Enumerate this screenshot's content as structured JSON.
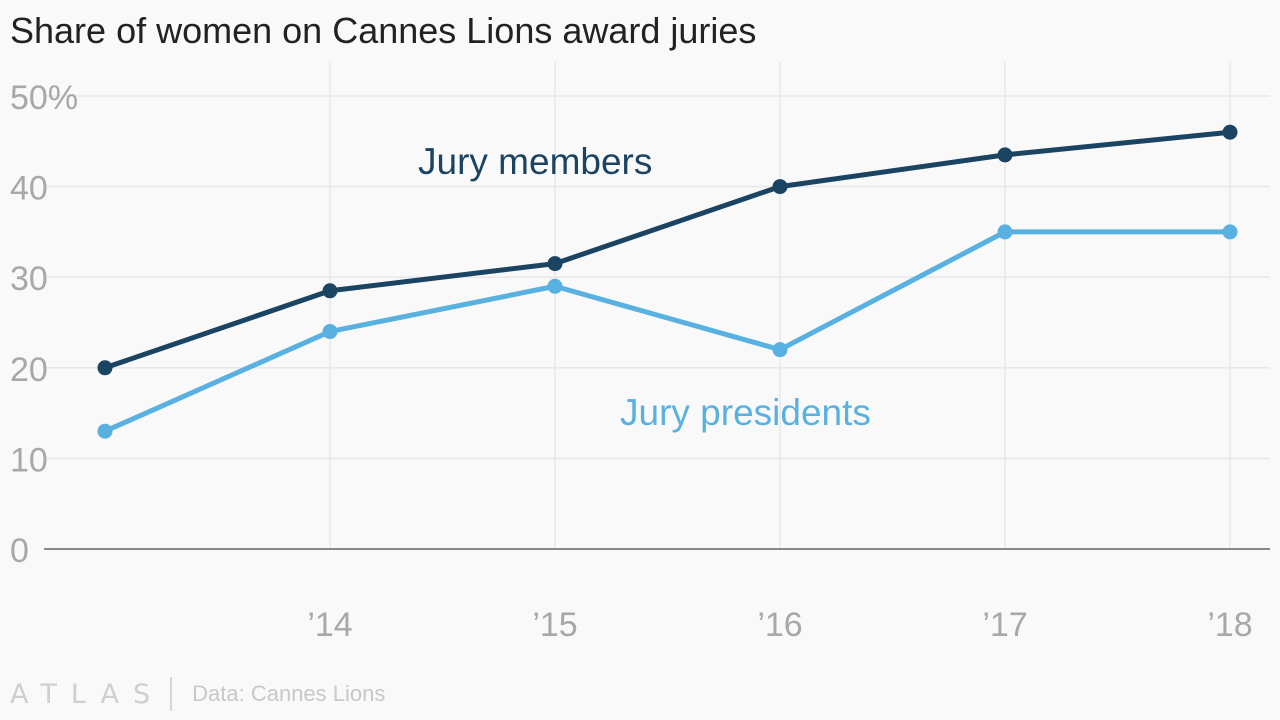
{
  "title": "Share of women on Cannes Lions award juries",
  "footer": {
    "logo": "ATLAS",
    "source": "Data: Cannes Lions"
  },
  "colors": {
    "members": "#1b4463",
    "presidents": "#58b1e0",
    "grid": "#e8e8e8",
    "axis": "#888888",
    "tick_text": "#a8a8a8"
  },
  "chart_data": {
    "type": "line",
    "x": [
      2013,
      2014,
      2015,
      2016,
      2017,
      2018
    ],
    "x_tick_values": [
      2014,
      2015,
      2016,
      2017,
      2018
    ],
    "x_tick_labels": [
      "’14",
      "’15",
      "’16",
      "’17",
      "’18"
    ],
    "y_tick_values": [
      0,
      10,
      20,
      30,
      40,
      50
    ],
    "y_tick_labels": [
      "0",
      "10",
      "20",
      "30",
      "40",
      "50%"
    ],
    "ylim": [
      0,
      50
    ],
    "grid": true,
    "series": [
      {
        "name": "Jury members",
        "values": [
          20,
          28.5,
          31.5,
          40,
          43.5,
          46
        ]
      },
      {
        "name": "Jury presidents",
        "values": [
          13,
          24,
          29,
          22,
          35,
          35
        ]
      }
    ]
  }
}
